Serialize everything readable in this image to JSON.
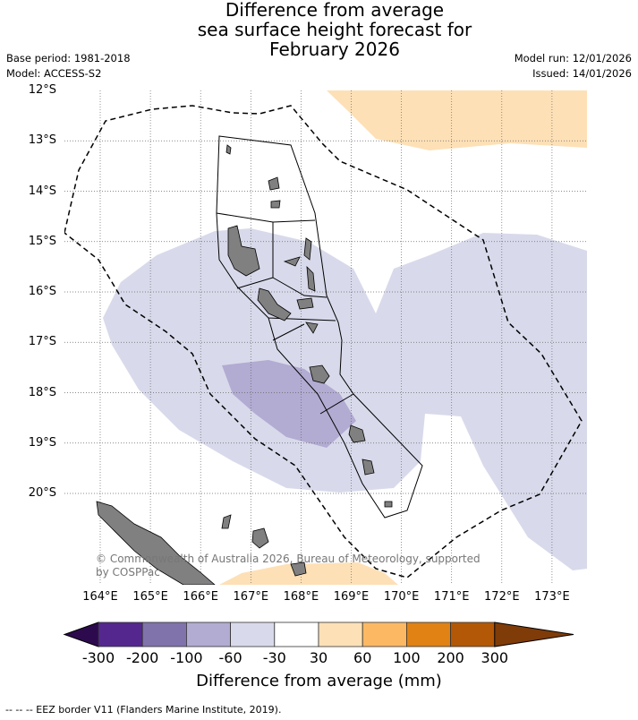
{
  "title": {
    "line1": "Difference from average",
    "line2": "sea surface height forecast for",
    "line3": "February 2026"
  },
  "meta": {
    "base_period": "Base period: 1981-2018",
    "model": "Model: ACCESS-S2",
    "model_run": "Model run: 12/01/2026",
    "issued": "Issued: 14/01/2026"
  },
  "map": {
    "lat_labels": [
      "12°S",
      "13°S",
      "14°S",
      "15°S",
      "16°S",
      "17°S",
      "18°S",
      "19°S",
      "20°S"
    ],
    "lon_labels": [
      "164°E",
      "165°E",
      "166°E",
      "167°E",
      "168°E",
      "169°E",
      "170°E",
      "171°E",
      "172°E",
      "173°E"
    ],
    "copyright": "© Commonwealth of Australia 2026, Bureau of Meteorology, supported by COSPPac"
  },
  "colorbar": {
    "ticks": [
      "-300",
      "-200",
      "-100",
      "-60",
      "-30",
      "30",
      "60",
      "100",
      "200",
      "300"
    ],
    "colors": [
      "#2d0a4e",
      "#54278f",
      "#8073ac",
      "#b2abd2",
      "#d8daeb",
      "#ffffff",
      "#fee0b6",
      "#fdb863",
      "#e08214",
      "#b35806",
      "#7f3b08"
    ],
    "label": "Difference from average (mm)"
  },
  "footer": "--  --  -- EEZ border V11 (Flanders Marine Institute, 2019)."
}
